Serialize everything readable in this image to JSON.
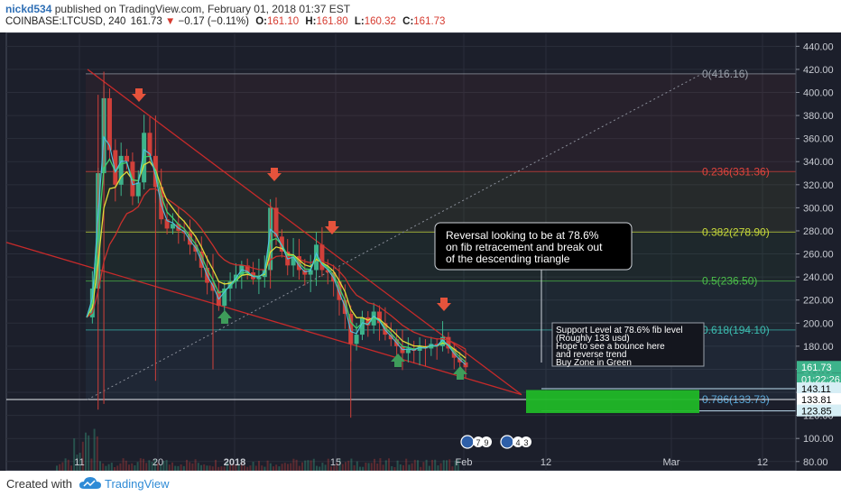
{
  "header": {
    "author": "nickd534",
    "published": "published on TradingView.com, February 01, 2018 01:37 EST",
    "symbol": "COINBASE:LTCUSD, 240",
    "last": "161.73",
    "change": "−0.17 (−0.11%)",
    "o_label": "O:",
    "o": "161.10",
    "h_label": "H:",
    "h": "161.80",
    "l_label": "L:",
    "l": "160.32",
    "c_label": "C:",
    "c": "161.73"
  },
  "footer": {
    "created_with": "Created with",
    "brand": "TradingView"
  },
  "colors": {
    "background": "#1c1f2b",
    "candle_up": "#3db38b",
    "candle_down": "#d1403a",
    "ema_red": "#c8302c",
    "ema_yellow": "#e0dc3a",
    "ema_green": "#3fcf6a",
    "ema_cyan": "#4fc1e0",
    "trend_line": "#c72a2a",
    "buy_zone": "#20b827",
    "arrow_down": "#e5533c",
    "arrow_up": "#3e9c5a"
  },
  "chart_data": {
    "type": "candlestick",
    "symbol": "COINBASE:LTCUSD",
    "ylim": [
      72,
      452
    ],
    "y_ticks": [
      "440.00",
      "420.00",
      "400.00",
      "380.00",
      "360.00",
      "340.00",
      "320.00",
      "300.00",
      "280.00",
      "260.00",
      "240.00",
      "220.00",
      "200.00",
      "180.00",
      "160.00",
      "140.00",
      "120.00",
      "100.00",
      "80.00"
    ],
    "x_ticks": [
      "11",
      "20",
      "2018",
      "15",
      "Feb",
      "12",
      "Mar",
      "12"
    ],
    "fib_levels": [
      {
        "label": "0(416.16)",
        "value": 416.16,
        "color": "#9aa0aa"
      },
      {
        "label": "0.236(331.36)",
        "value": 331.36,
        "color": "#e0443c"
      },
      {
        "label": "0.382(278.90)",
        "value": 278.9,
        "color": "#c7d93a"
      },
      {
        "label": "0.5(236.50)",
        "value": 236.5,
        "color": "#4cbf4a"
      },
      {
        "label": "0.618(194.10)",
        "value": 194.1,
        "color": "#3cbcb0"
      },
      {
        "label": "0.786(133.73)",
        "value": 133.73,
        "color": "#59a6d6"
      }
    ],
    "price_labels": [
      {
        "text": "161.73",
        "value": 161.73,
        "bg": "#3db38b",
        "fg": "#ffffff"
      },
      {
        "text": "01:22:26",
        "value": 151.5,
        "bg": "#3db38b",
        "fg": "#ffffff"
      },
      {
        "text": "143.11",
        "value": 143.11,
        "bg": "#d6eef5",
        "fg": "#000000"
      },
      {
        "text": "133.81",
        "value": 133.81,
        "bg": "#ffffff",
        "fg": "#000000"
      },
      {
        "text": "123.85",
        "value": 123.85,
        "bg": "#d6eef5",
        "fg": "#000000"
      }
    ],
    "price_series": [
      [
        0,
        205
      ],
      [
        1,
        230
      ],
      [
        2,
        330
      ],
      [
        3,
        395
      ],
      [
        4,
        350
      ],
      [
        5,
        320
      ],
      [
        6,
        345
      ],
      [
        7,
        340
      ],
      [
        8,
        310
      ],
      [
        9,
        322
      ],
      [
        10,
        365
      ],
      [
        11,
        345
      ],
      [
        12,
        318
      ],
      [
        13,
        290
      ],
      [
        14,
        282
      ],
      [
        15,
        286
      ],
      [
        16,
        280
      ],
      [
        17,
        278
      ],
      [
        18,
        268
      ],
      [
        19,
        262
      ],
      [
        20,
        248
      ],
      [
        21,
        235
      ],
      [
        22,
        228
      ],
      [
        23,
        215
      ],
      [
        24,
        230
      ],
      [
        25,
        236
      ],
      [
        26,
        242
      ],
      [
        27,
        250
      ],
      [
        28,
        244
      ],
      [
        29,
        238
      ],
      [
        30,
        240
      ],
      [
        31,
        246
      ],
      [
        32,
        300
      ],
      [
        33,
        275
      ],
      [
        34,
        262
      ],
      [
        35,
        250
      ],
      [
        36,
        258
      ],
      [
        37,
        246
      ],
      [
        38,
        242
      ],
      [
        39,
        246
      ],
      [
        40,
        268
      ],
      [
        41,
        246
      ],
      [
        42,
        244
      ],
      [
        43,
        236
      ],
      [
        44,
        220
      ],
      [
        45,
        208
      ],
      [
        46,
        182
      ],
      [
        47,
        190
      ],
      [
        48,
        205
      ],
      [
        49,
        198
      ],
      [
        50,
        210
      ],
      [
        51,
        200
      ],
      [
        52,
        190
      ],
      [
        53,
        186
      ],
      [
        54,
        180
      ],
      [
        55,
        174
      ],
      [
        56,
        178
      ],
      [
        57,
        176
      ],
      [
        58,
        180
      ],
      [
        59,
        178
      ],
      [
        60,
        182
      ],
      [
        61,
        180
      ],
      [
        62,
        188
      ],
      [
        63,
        178
      ],
      [
        64,
        170
      ],
      [
        65,
        166
      ],
      [
        66,
        161.73
      ]
    ],
    "annotations": [
      {
        "text": [
          "Reversal looking to be at 78.6%",
          "on fib retracement and break out",
          "of the descending triangle"
        ]
      },
      {
        "text": [
          "Support Level at 78.6% fib level",
          "(Roughly 133 usd)",
          "Hope to see a bounce here",
          "and reverse trend",
          "Buy Zone in Green"
        ]
      }
    ],
    "event_badges": [
      {
        "label": "7"
      },
      {
        "label": "9"
      },
      {
        "label": "4"
      },
      {
        "label": "3"
      }
    ]
  }
}
